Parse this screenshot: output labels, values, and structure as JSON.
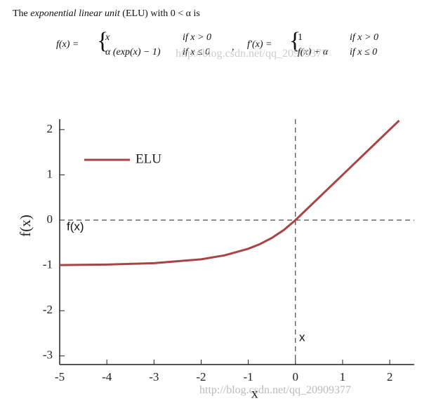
{
  "header": {
    "intro": [
      "The ",
      "exponential linear unit",
      " (ELU) with 0 < α is"
    ],
    "formula_f": {
      "lhs": "f(x)  =",
      "case1": "x",
      "cond1": "if x > 0",
      "case2": "α (exp(x) − 1)",
      "cond2": "if x ≤ 0"
    },
    "separator": ",",
    "formula_df": {
      "lhs": "f′(x)  =",
      "case1": "1",
      "cond1": "if x > 0",
      "case2": "f(x) + α",
      "cond2": "if x ≤ 0"
    }
  },
  "watermark": "http://blog.csdn.net/qq_20909377",
  "chart_data": {
    "type": "line",
    "xlabel": "x",
    "ylabel": "f(x)",
    "x": [
      -5,
      -4,
      -3,
      -2,
      -1.5,
      -1,
      -0.75,
      -0.5,
      -0.25,
      0,
      1,
      2,
      2.2
    ],
    "series": [
      {
        "name": "ELU",
        "color": "#a94444",
        "values": [
          -0.993,
          -0.982,
          -0.95,
          -0.865,
          -0.777,
          -0.632,
          -0.528,
          -0.393,
          -0.221,
          0,
          1,
          2,
          2.2
        ]
      }
    ],
    "xlim": [
      -5,
      2.52
    ],
    "ylim": [
      -3.19,
      2.23
    ],
    "xticks": [
      -5,
      -4,
      -3,
      -2,
      -1,
      0,
      1,
      2
    ],
    "yticks": [
      -3,
      -2,
      -1,
      0,
      1,
      2
    ],
    "hlines": [
      0
    ],
    "vlines": [
      0
    ],
    "legend": "upper left",
    "annotations": [
      "f(x)",
      "x"
    ]
  }
}
